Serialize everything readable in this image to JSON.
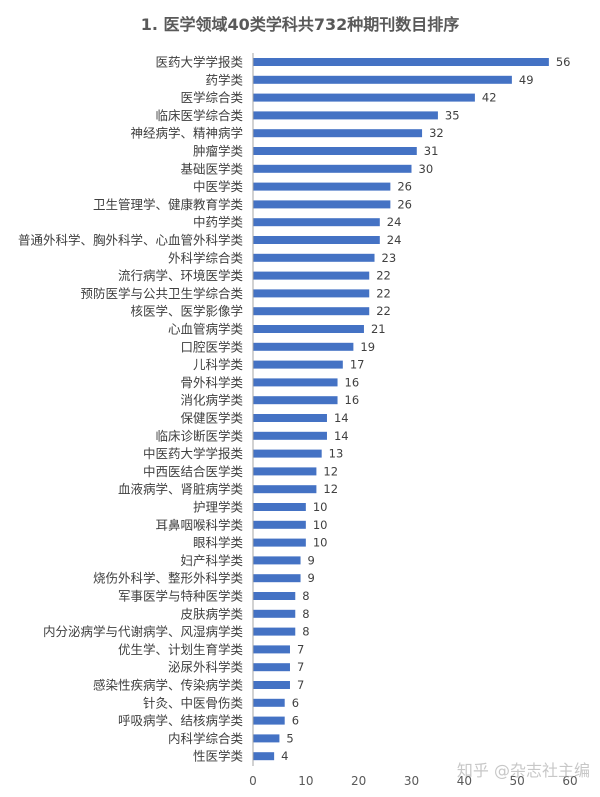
{
  "chart_data": {
    "type": "bar",
    "orientation": "horizontal",
    "title": "1. 医学领域40类学科共732种期刊数目排序",
    "categories": [
      "医药大学学报类",
      "药学类",
      "医学综合类",
      "临床医学综合类",
      "神经病学、精神病学",
      "肿瘤学类",
      "基础医学类",
      "中医学类",
      "卫生管理学、健康教育学类",
      "中药学类",
      "普通外科学、胸外科学、心血管外科学类",
      "外科学综合类",
      "流行病学、环境医学类",
      "预防医学与公共卫生学综合类",
      "核医学、医学影像学",
      "心血管病学类",
      "口腔医学类",
      "儿科学类",
      "骨外科学类",
      "消化病学类",
      "保健医学类",
      "临床诊断医学类",
      "中医药大学学报类",
      "中西医结合医学类",
      "血液病学、肾脏病学类",
      "护理学类",
      "耳鼻咽喉科学类",
      "眼科学类",
      "妇产科学类",
      "烧伤外科学、整形外科学类",
      "军事医学与特种医学类",
      "皮肤病学类",
      "内分泌病学与代谢病学、风湿病学类",
      "优生学、计划生育学类",
      "泌尿外科学类",
      "感染性疾病学、传染病学类",
      "针灸、中医骨伤类",
      "呼吸病学、结核病学类",
      "内科学综合类",
      "性医学类"
    ],
    "values": [
      56,
      49,
      42,
      35,
      32,
      31,
      30,
      26,
      26,
      24,
      24,
      23,
      22,
      22,
      22,
      21,
      19,
      17,
      16,
      16,
      14,
      14,
      13,
      12,
      12,
      10,
      10,
      10,
      9,
      9,
      8,
      8,
      8,
      7,
      7,
      7,
      6,
      6,
      5,
      4
    ],
    "xlim": [
      0,
      60
    ],
    "ticks": [
      0,
      10,
      20,
      30,
      40,
      50,
      60
    ],
    "grid": false,
    "legend": "none",
    "data_labels": true,
    "bar_color": "#4472C4"
  },
  "watermark": "知乎 @杂志社主编"
}
